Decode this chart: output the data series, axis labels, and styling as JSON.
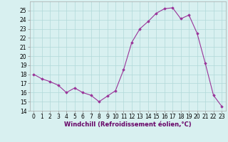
{
  "x": [
    0,
    1,
    2,
    3,
    4,
    5,
    6,
    7,
    8,
    9,
    10,
    11,
    12,
    13,
    14,
    15,
    16,
    17,
    18,
    19,
    20,
    21,
    22,
    23
  ],
  "y": [
    18.0,
    17.5,
    17.2,
    16.8,
    16.0,
    16.5,
    16.0,
    15.7,
    15.0,
    15.6,
    16.2,
    18.5,
    21.5,
    23.0,
    23.8,
    24.7,
    25.2,
    25.3,
    24.1,
    24.5,
    22.5,
    19.2,
    15.7,
    14.5
  ],
  "line_color": "#993399",
  "marker": "D",
  "marker_size": 1.8,
  "bg_color": "#d8f0f0",
  "grid_color": "#b0d8d8",
  "xlabel": "Windchill (Refroidissement éolien,°C)",
  "xlabel_fontsize": 6.0,
  "tick_fontsize": 5.5,
  "ylim": [
    14,
    26
  ],
  "xlim": [
    -0.5,
    23.5
  ],
  "yticks": [
    14,
    15,
    16,
    17,
    18,
    19,
    20,
    21,
    22,
    23,
    24,
    25
  ],
  "xticks": [
    0,
    1,
    2,
    3,
    4,
    5,
    6,
    7,
    8,
    9,
    10,
    11,
    12,
    13,
    14,
    15,
    16,
    17,
    18,
    19,
    20,
    21,
    22,
    23
  ]
}
